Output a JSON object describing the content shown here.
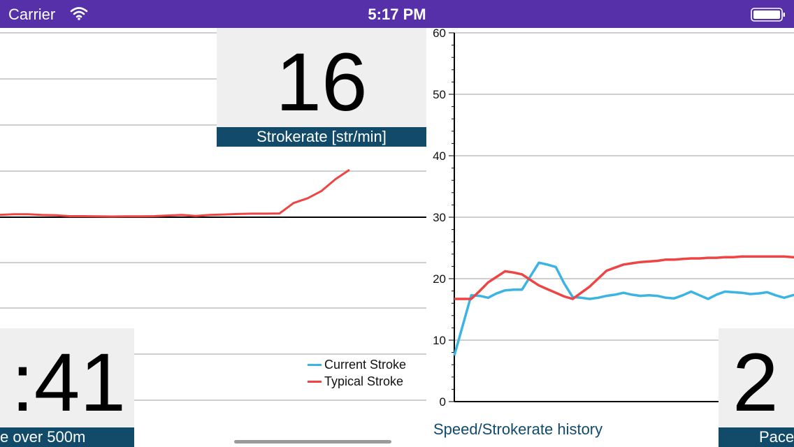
{
  "status_bar": {
    "carrier": "Carrier",
    "time": "5:17 PM",
    "icons": [
      "wifi-icon",
      "battery-icon"
    ],
    "background_color": "#5530a9"
  },
  "stroke_panel": {
    "strokerate_value": "16",
    "strokerate_label": "Strokerate [str/min]",
    "pace_value": ":41",
    "pace_label": "e over 500m",
    "legend": [
      {
        "name": "Current Stroke",
        "color": "#3bb4e4"
      },
      {
        "name": "Typical Stroke",
        "color": "#ef4444"
      }
    ]
  },
  "history_panel": {
    "title": "Speed/Strokerate history",
    "pace_value": "2",
    "pace_label": "Pace"
  },
  "chart_data": [
    {
      "type": "line",
      "title": "",
      "xlabel": "",
      "ylabel": "",
      "grid": true,
      "legend_position": "bottom-right",
      "series": [
        {
          "name": "Current Stroke",
          "color": "#3bb4e4",
          "x": [],
          "values": []
        },
        {
          "name": "Typical Stroke",
          "color": "#ef4444",
          "x": [
            0,
            20,
            40,
            60,
            80,
            100,
            120,
            140,
            160,
            180,
            200,
            220,
            240,
            260,
            280,
            300,
            320,
            340,
            360,
            380,
            400,
            420,
            440,
            460,
            480,
            500
          ],
          "values": [
            -0.14,
            -0.17,
            -0.17,
            -0.13,
            -0.11,
            -0.06,
            -0.06,
            -0.05,
            -0.04,
            -0.05,
            -0.05,
            -0.06,
            -0.1,
            -0.13,
            -0.07,
            -0.13,
            -0.16,
            -0.19,
            -0.21,
            -0.21,
            -0.22,
            -0.83,
            -1.11,
            -1.54,
            -2.23,
            -2.78
          ]
        }
      ]
    },
    {
      "type": "line",
      "title": "",
      "xlabel": "",
      "ylabel": "",
      "ylim": [
        0,
        60
      ],
      "yticks": [
        0,
        10,
        20,
        30,
        40,
        50,
        60
      ],
      "grid": true,
      "series": [
        {
          "name": "",
          "color": "#3bb4e4",
          "x": [
            0,
            1,
            2,
            3,
            4,
            5,
            6,
            7,
            8,
            9,
            10,
            11,
            12,
            13,
            14,
            15,
            16,
            17,
            18,
            19,
            20,
            21,
            22,
            23,
            24,
            25,
            26,
            27,
            28,
            29,
            30,
            31,
            32,
            33,
            34,
            35,
            36,
            37,
            38,
            39,
            40,
            41,
            42,
            43
          ],
          "values": [
            7.5,
            12.4,
            17.3,
            17.2,
            16.9,
            17.6,
            18.1,
            18.2,
            18.2,
            20.4,
            22.6,
            22.3,
            21.9,
            19.2,
            17.0,
            16.9,
            16.7,
            16.9,
            17.2,
            17.4,
            17.7,
            17.4,
            17.2,
            17.3,
            17.2,
            16.9,
            16.8,
            17.3,
            17.9,
            17.3,
            16.7,
            17.4,
            17.9,
            17.8,
            17.7,
            17.5,
            17.6,
            17.8,
            17.3,
            16.9,
            17.3,
            17.6,
            17.0,
            16.9
          ]
        },
        {
          "name": "",
          "color": "#ef4444",
          "x": [
            0,
            1,
            2,
            3,
            4,
            5,
            6,
            7,
            8,
            9,
            10,
            11,
            12,
            13,
            14,
            15,
            16,
            17,
            18,
            19,
            20,
            21,
            22,
            23,
            24,
            25,
            26,
            27,
            28,
            29,
            30,
            31,
            32,
            33,
            34,
            35,
            36,
            37,
            38,
            39,
            40,
            41,
            42,
            43
          ],
          "values": [
            16.7,
            16.7,
            16.7,
            18.0,
            19.4,
            20.3,
            21.2,
            21.0,
            20.7,
            19.8,
            18.9,
            18.3,
            17.7,
            17.1,
            16.7,
            17.7,
            18.7,
            20.0,
            21.3,
            21.8,
            22.3,
            22.5,
            22.7,
            22.8,
            22.9,
            23.1,
            23.1,
            23.2,
            23.3,
            23.3,
            23.4,
            23.4,
            23.5,
            23.5,
            23.6,
            23.6,
            23.6,
            23.6,
            23.6,
            23.6,
            23.5,
            23.5,
            23.5,
            23.4
          ]
        }
      ]
    }
  ]
}
